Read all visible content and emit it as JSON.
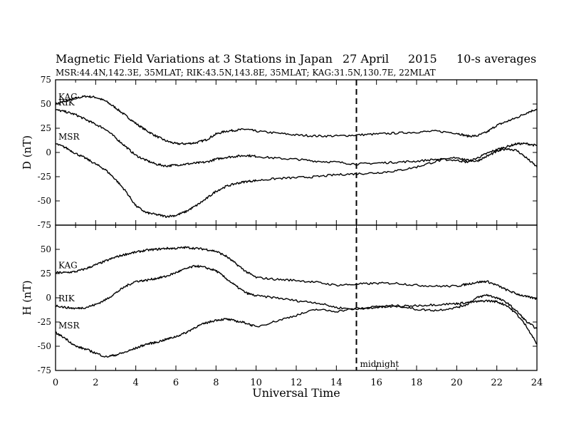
{
  "header": {
    "title": "Magnetic Field Variations at 3 Stations in Japan",
    "date": "27  April",
    "year": "2015",
    "averaging": "10-s averages",
    "stations": "MSR:44.4N,142.3E, 35MLAT;   RIK:43.5N,143.8E, 35MLAT;   KAG:31.5N,130.7E, 22MLAT"
  },
  "chart_data": {
    "type": "line",
    "xlabel": "Universal Time",
    "xlim": [
      0,
      24
    ],
    "xticks": [
      "0",
      "2",
      "4",
      "6",
      "8",
      "10",
      "12",
      "14",
      "16",
      "18",
      "20",
      "22",
      "24"
    ],
    "annotation": {
      "label": "midnight",
      "x": 15
    },
    "panels": [
      {
        "ylabel": "D (nT)",
        "ylim": [
          -75,
          75
        ],
        "yticks": [
          "75",
          "50",
          "25",
          "0",
          "-25",
          "-50",
          "-75"
        ],
        "series": [
          {
            "name": "KAG",
            "x": [
              0,
              0.5,
              1,
              1.5,
              2,
              2.5,
              3,
              3.5,
              4,
              4.5,
              5,
              5.5,
              6,
              6.5,
              7,
              7.5,
              8,
              8.5,
              9,
              9.5,
              10,
              11,
              12,
              13,
              14,
              15,
              16,
              17,
              18,
              19,
              20,
              20.5,
              21,
              21.5,
              22,
              22.5,
              23,
              23.5,
              24
            ],
            "y": [
              50,
              53,
              56,
              58,
              57,
              53,
              46,
              38,
              30,
              23,
              17,
              12,
              9,
              9,
              10,
              13,
              19,
              22,
              23,
              24,
              22,
              20,
              18,
              17,
              17,
              18,
              19,
              20,
              21,
              22,
              20,
              17,
              17,
              21,
              28,
              32,
              36,
              41,
              45
            ]
          },
          {
            "name": "RIK",
            "x": [
              0,
              0.5,
              1,
              1.5,
              2,
              2.5,
              3,
              3.5,
              4,
              4.5,
              5,
              5.5,
              6,
              6.5,
              7,
              7.5,
              8,
              8.5,
              9,
              9.5,
              10,
              11,
              12,
              13,
              14,
              15,
              16,
              17,
              18,
              19,
              20,
              20.5,
              21,
              21.5,
              22,
              22.5,
              23,
              23.5,
              24
            ],
            "y": [
              44,
              42,
              39,
              34,
              29,
              24,
              15,
              6,
              -3,
              -8,
              -12,
              -14,
              -13,
              -12,
              -11,
              -10,
              -7,
              -5,
              -4,
              -3,
              -4,
              -6,
              -7,
              -9,
              -10,
              -12,
              -11,
              -10,
              -9,
              -7,
              -8,
              -10,
              -6,
              -1,
              3,
              6,
              9,
              9,
              7
            ]
          },
          {
            "name": "MSR",
            "x": [
              0,
              0.5,
              1,
              1.5,
              2,
              2.5,
              3,
              3.5,
              4,
              4.5,
              5,
              5.5,
              6,
              6.5,
              7,
              7.5,
              8,
              8.5,
              9,
              9.5,
              10,
              11,
              12,
              13,
              14,
              15,
              16,
              17,
              18,
              19,
              20,
              20.5,
              21,
              21.5,
              22,
              22.5,
              23,
              23.5,
              24
            ],
            "y": [
              9,
              5,
              -1,
              -6,
              -12,
              -18,
              -28,
              -40,
              -55,
              -62,
              -64,
              -66,
              -65,
              -61,
              -55,
              -48,
              -40,
              -35,
              -32,
              -30,
              -29,
              -27,
              -26,
              -25,
              -23,
              -22,
              -21,
              -19,
              -15,
              -9,
              -5,
              -8,
              -9,
              -4,
              1,
              4,
              2,
              -6,
              -15
            ]
          }
        ]
      },
      {
        "ylabel": "H (nT)",
        "ylim": [
          -75,
          75
        ],
        "yticks": [
          "50",
          "25",
          "0",
          "-25",
          "-50",
          "-75"
        ],
        "series": [
          {
            "name": "KAG",
            "x": [
              0,
              0.5,
              1,
              1.5,
              2,
              2.5,
              3,
              3.5,
              4,
              4.5,
              5,
              5.5,
              6,
              6.5,
              7,
              7.5,
              8,
              8.5,
              9,
              9.5,
              10,
              11,
              12,
              13,
              14,
              15,
              16,
              17,
              18,
              19,
              20,
              20.5,
              21,
              21.5,
              22,
              22.5,
              23,
              23.5,
              24
            ],
            "y": [
              26,
              26,
              27,
              30,
              34,
              38,
              42,
              45,
              47,
              49,
              50,
              51,
              51,
              52,
              51,
              50,
              48,
              43,
              35,
              27,
              21,
              19,
              18,
              16,
              13,
              14,
              15,
              15,
              13,
              12,
              12,
              14,
              16,
              17,
              13,
              8,
              4,
              1,
              -1
            ]
          },
          {
            "name": "RIK",
            "x": [
              0,
              0.5,
              1,
              1.5,
              2,
              2.5,
              3,
              3.5,
              4,
              4.5,
              5,
              5.5,
              6,
              6.5,
              7,
              7.5,
              8,
              8.5,
              9,
              9.5,
              10,
              11,
              12,
              13,
              14,
              15,
              16,
              17,
              18,
              19,
              20,
              20.5,
              21,
              21.5,
              22,
              22.5,
              23,
              23.5,
              24
            ],
            "y": [
              -8,
              -10,
              -11,
              -10,
              -7,
              -2,
              5,
              12,
              17,
              18,
              20,
              22,
              26,
              30,
              33,
              31,
              28,
              20,
              12,
              5,
              2,
              0,
              -3,
              -5,
              -10,
              -12,
              -9,
              -8,
              -12,
              -13,
              -10,
              -7,
              0,
              3,
              0,
              -5,
              -14,
              -25,
              -32
            ]
          },
          {
            "name": "MSR",
            "x": [
              0,
              0.5,
              1,
              1.5,
              2,
              2.5,
              3,
              3.5,
              4,
              4.5,
              5,
              5.5,
              6,
              6.5,
              7,
              7.5,
              8,
              8.5,
              9,
              9.5,
              10,
              11,
              12,
              13,
              14,
              15,
              16,
              17,
              18,
              19,
              20,
              20.5,
              21,
              21.5,
              22,
              22.5,
              23,
              23.5,
              24
            ],
            "y": [
              -36,
              -42,
              -50,
              -53,
              -57,
              -61,
              -59,
              -56,
              -52,
              -48,
              -46,
              -43,
              -40,
              -36,
              -30,
              -26,
              -23,
              -22,
              -24,
              -26,
              -30,
              -24,
              -18,
              -12,
              -14,
              -11,
              -10,
              -9,
              -8,
              -7,
              -6,
              -5,
              -4,
              -3,
              -4,
              -8,
              -17,
              -30,
              -48
            ]
          }
        ]
      }
    ]
  }
}
